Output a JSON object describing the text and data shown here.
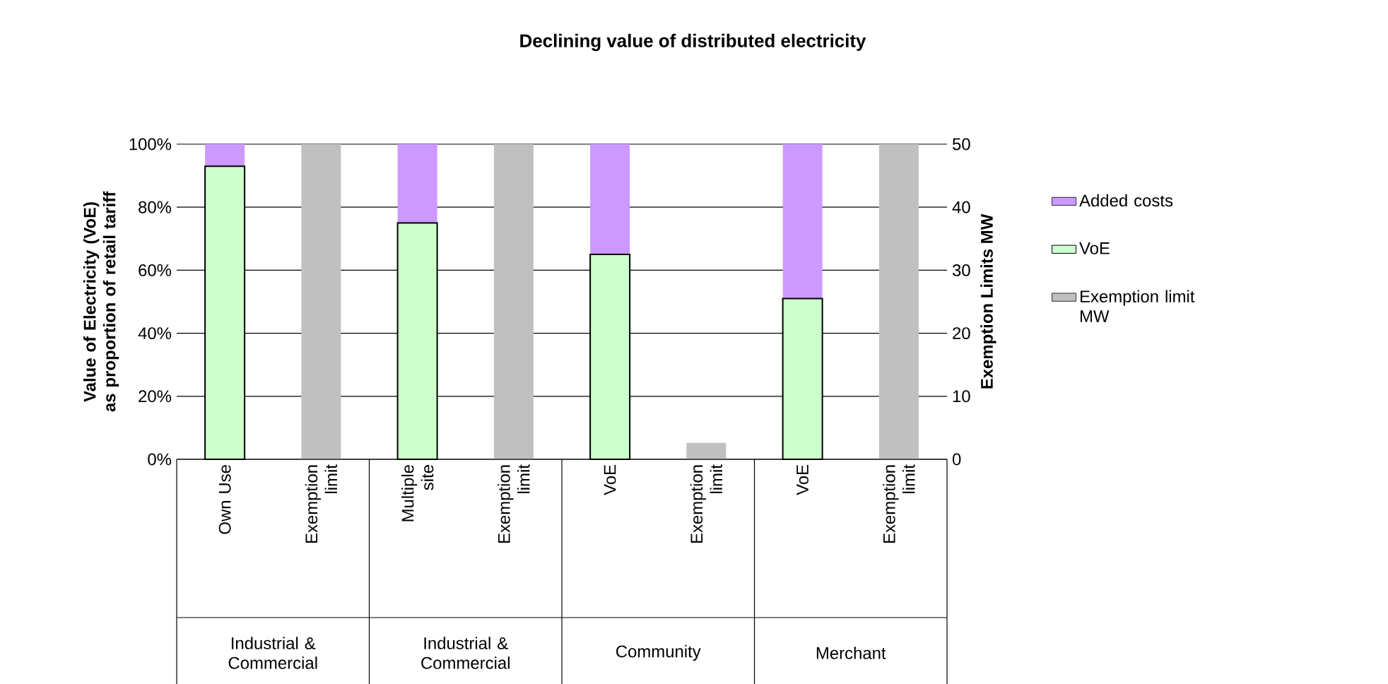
{
  "chart_data": {
    "type": "bar",
    "title": "Declining value of distributed electricity",
    "categories": [
      "Own Use",
      "Exemption limit",
      "Multiple site",
      "Exemption limit",
      "VoE",
      "Exemption limit",
      "VoE",
      "Exemption limit"
    ],
    "series": [
      {
        "name": "VoE",
        "color": "#ccffcc",
        "values": [
          93,
          null,
          75,
          null,
          65,
          null,
          51,
          null
        ]
      },
      {
        "name": "Added costs",
        "color": "#cc99ff",
        "values": [
          7,
          null,
          25,
          null,
          35,
          null,
          49,
          null
        ]
      },
      {
        "name": "Exemption limit MW",
        "color": "#c0c0c0",
        "axis": "y2",
        "values": [
          null,
          50,
          null,
          50,
          null,
          2.6,
          null,
          50
        ]
      }
    ],
    "stacked": true,
    "ylabel": "Value of Electricity (VoE) as proportion of retail tariff",
    "y2label": "Exemption Limits MW",
    "ylim": [
      0,
      100
    ],
    "yticks": [
      {
        "value": 0,
        "label": "0%"
      },
      {
        "value": 20,
        "label": "20%"
      },
      {
        "value": 40,
        "label": "40%"
      },
      {
        "value": 60,
        "label": "60%"
      },
      {
        "value": 80,
        "label": "80%"
      },
      {
        "value": 100,
        "label": "100%"
      }
    ],
    "y2lim": [
      0,
      50
    ],
    "y2ticks": [
      0,
      10,
      20,
      30,
      40,
      50
    ],
    "grid": "y",
    "legend": "right",
    "annotations": [
      "Industrial & Commercial",
      "Industrial & Commercial",
      "Community",
      "Merchant"
    ]
  }
}
